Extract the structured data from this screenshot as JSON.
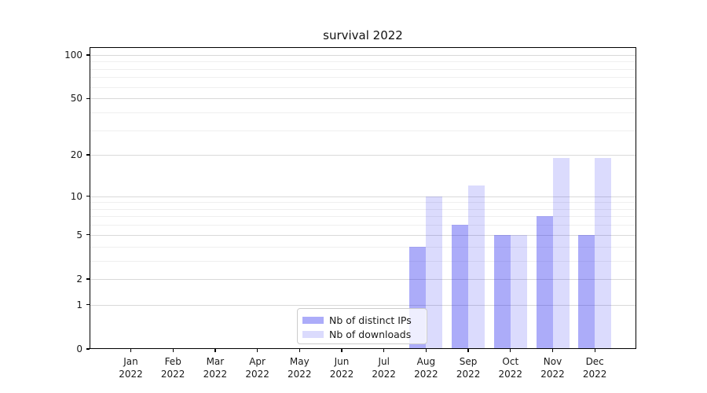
{
  "title": "survival 2022",
  "chart_data": {
    "type": "bar",
    "title": "survival 2022",
    "categories": [
      "Jan",
      "Feb",
      "Mar",
      "Apr",
      "May",
      "Jun",
      "Jul",
      "Aug",
      "Sep",
      "Oct",
      "Nov",
      "Dec"
    ],
    "year": "2022",
    "series": [
      {
        "name": "Nb of distinct IPs",
        "color": "rgba(30,30,240,0.37)",
        "values": [
          0,
          0,
          0,
          0,
          0,
          0,
          0,
          4,
          6,
          5,
          7,
          5
        ]
      },
      {
        "name": "Nb of downloads",
        "color": "rgba(30,30,240,0.16)",
        "values": [
          0,
          0,
          0,
          0,
          0,
          0,
          0,
          10,
          12,
          5,
          19,
          19
        ]
      }
    ],
    "xlabel": "",
    "ylabel": "",
    "y_scale": "log1p",
    "ylim": [
      0,
      113
    ],
    "y_major_ticks": [
      0,
      1,
      2,
      5,
      10,
      20,
      50,
      100
    ],
    "y_minor_ticks": [
      3,
      4,
      6,
      7,
      8,
      9,
      30,
      40,
      60,
      70,
      80,
      90
    ],
    "grid": true,
    "legend_position": "lower center"
  },
  "colors": {
    "bar_distinct_ips": "rgba(30,30,240,0.37)",
    "bar_downloads": "rgba(30,30,240,0.16)",
    "grid_major": "#d9d9d9",
    "grid_minor": "#efefef",
    "axis_frame": "#000000",
    "text": "#1a1a1a",
    "legend_border": "#cccccc",
    "background": "#ffffff"
  }
}
